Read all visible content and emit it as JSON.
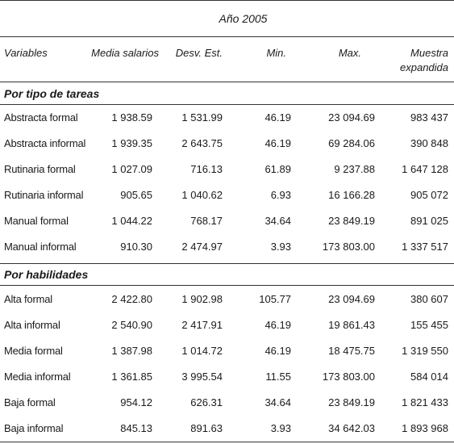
{
  "header": {
    "year": "Año 2005",
    "columns": {
      "variables": "Variables",
      "media": "Media salarios",
      "desv": "Desv. Est.",
      "min": "Min.",
      "max": "Max.",
      "muestra_line1": "Muestra",
      "muestra_line2": "expandida"
    }
  },
  "sections": [
    {
      "title": "Por tipo de tareas",
      "rows": [
        {
          "label": "Abstracta formal",
          "media": "1 938.59",
          "desv": "1 531.99",
          "min": "46.19",
          "max": "23 094.69",
          "muestra": "983 437"
        },
        {
          "label": "Abstracta informal",
          "media": "1 939.35",
          "desv": "2 643.75",
          "min": "46.19",
          "max": "69 284.06",
          "muestra": "390 848"
        },
        {
          "label": "Rutinaria formal",
          "media": "1 027.09",
          "desv": "716.13",
          "min": "61.89",
          "max": "9 237.88",
          "muestra": "1 647 128"
        },
        {
          "label": "Rutinaria informal",
          "media": "905.65",
          "desv": "1 040.62",
          "min": "6.93",
          "max": "16 166.28",
          "muestra": "905 072"
        },
        {
          "label": "Manual formal",
          "media": "1 044.22",
          "desv": "768.17",
          "min": "34.64",
          "max": "23 849.19",
          "muestra": "891 025"
        },
        {
          "label": "Manual informal",
          "media": "910.30",
          "desv": "2 474.97",
          "min": "3.93",
          "max": "173 803.00",
          "muestra": "1 337 517"
        }
      ]
    },
    {
      "title": "Por habilidades",
      "rows": [
        {
          "label": "Alta formal",
          "media": "2 422.80",
          "desv": "1 902.98",
          "min": "105.77",
          "max": "23 094.69",
          "muestra": "380 607"
        },
        {
          "label": "Alta informal",
          "media": "2 540.90",
          "desv": "2 417.91",
          "min": "46.19",
          "max": "19 861.43",
          "muestra": "155 455"
        },
        {
          "label": "Media formal",
          "media": "1 387.98",
          "desv": "1 014.72",
          "min": "46.19",
          "max": "18 475.75",
          "muestra": "1 319 550"
        },
        {
          "label": "Media informal",
          "media": "1 361.85",
          "desv": "3 995.54",
          "min": "11.55",
          "max": "173 803.00",
          "muestra": "584 014"
        },
        {
          "label": "Baja formal",
          "media": "954.12",
          "desv": "626.31",
          "min": "34.64",
          "max": "23 849.19",
          "muestra": "1 821 433"
        },
        {
          "label": "Baja informal",
          "media": "845.13",
          "desv": "891.63",
          "min": "3.93",
          "max": "34 642.03",
          "muestra": "1 893 968"
        }
      ]
    }
  ]
}
